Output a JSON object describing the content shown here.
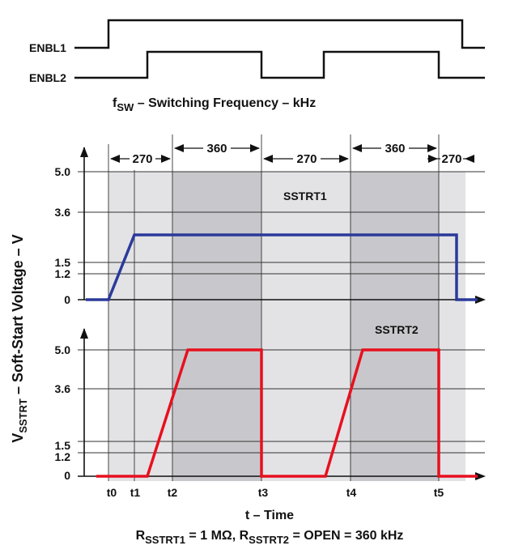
{
  "signals": {
    "enbl1": "ENBL1",
    "enbl2": "ENBL2"
  },
  "fsw_label": {
    "main": "f",
    "sub": "SW",
    "rest": " – Switching Frequency – kHz"
  },
  "intervals": [
    "270",
    "360",
    "270",
    "360",
    "270"
  ],
  "y_ticks": [
    "5.0",
    "3.6",
    "1.5",
    "1.2",
    "0"
  ],
  "time_ticks": [
    "t0",
    "t1",
    "t2",
    "t3",
    "t4",
    "t5"
  ],
  "series": {
    "sstrt1": "SSTRT1",
    "sstrt2": "SSTRT2"
  },
  "y_axis_label": {
    "main": "V",
    "sub": "SSTRT",
    "rest": " – Soft-Start Voltage – V"
  },
  "x_axis_label": "t – Time",
  "footnote": {
    "r1": "R",
    "r1_sub": "SSTRT1",
    "mid": " = 1 MΩ, R",
    "r2_sub": "SSTRT2",
    "end": " = OPEN = 360 kHz"
  },
  "colors": {
    "sstrt1": "#2b3a9a",
    "sstrt2": "#e8101e",
    "shade_light": "#e3e3e6",
    "shade_dark": "#c8c8cc"
  }
}
